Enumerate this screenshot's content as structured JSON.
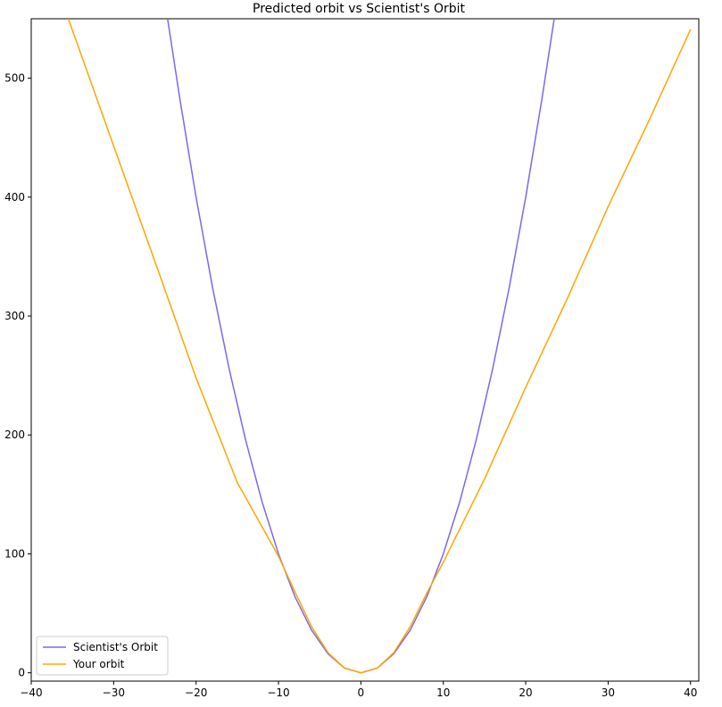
{
  "chart_data": {
    "type": "line",
    "title": "Predicted orbit vs Scientist's Orbit",
    "xlabel": "",
    "ylabel": "",
    "xlim": [
      -40,
      41
    ],
    "ylim": [
      -7,
      550
    ],
    "xticks": [
      -40,
      -30,
      -20,
      -10,
      0,
      10,
      20,
      30,
      40
    ],
    "yticks": [
      0,
      100,
      200,
      300,
      400,
      500
    ],
    "x_tick_labels": [
      "−40",
      "−30",
      "−20",
      "−10",
      "0",
      "10",
      "20",
      "30",
      "40"
    ],
    "y_tick_labels": [
      "0",
      "100",
      "200",
      "300",
      "400",
      "500"
    ],
    "grid": false,
    "legend_position": "lower-left",
    "series": [
      {
        "name": "Scientist's Orbit",
        "color": "#7b68ee",
        "x": [
          -23.5,
          -22,
          -20,
          -18,
          -16,
          -14,
          -12,
          -10,
          -8,
          -6,
          -4,
          -2,
          0,
          2,
          4,
          6,
          8,
          10,
          12,
          14,
          16,
          18,
          20,
          22,
          23.5
        ],
        "y": [
          552,
          484,
          400,
          324,
          256,
          196,
          144,
          100,
          64,
          36,
          16,
          4,
          0,
          4,
          16,
          36,
          64,
          100,
          144,
          196,
          256,
          324,
          400,
          484,
          552
        ]
      },
      {
        "name": "Your orbit",
        "color": "#ffa500",
        "x": [
          -35.6,
          -30,
          -25,
          -20,
          -15,
          -10,
          -8,
          -6,
          -4,
          -2,
          0,
          2,
          4,
          6,
          8,
          10,
          15,
          20,
          25,
          30,
          35,
          40
        ],
        "y": [
          552,
          443,
          346,
          248,
          160,
          98,
          68,
          39,
          17,
          4,
          0,
          4,
          17,
          39,
          67,
          93,
          163,
          240,
          314,
          392,
          465,
          541
        ]
      }
    ]
  }
}
